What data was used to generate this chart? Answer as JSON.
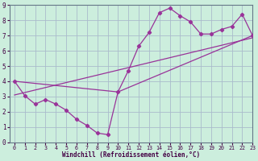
{
  "xlabel": "Windchill (Refroidissement éolien,°C)",
  "bg_color": "#cceedd",
  "grid_color": "#aabbcc",
  "line_color": "#993399",
  "curve_x": [
    0,
    1,
    2,
    3,
    4,
    5,
    6,
    7,
    8,
    9,
    10,
    11,
    12,
    13,
    14,
    15,
    16,
    17,
    18,
    19,
    20,
    21,
    22,
    23
  ],
  "curve_y": [
    4.0,
    3.05,
    2.5,
    2.8,
    2.5,
    2.1,
    1.5,
    1.1,
    0.6,
    0.5,
    3.3,
    4.7,
    6.3,
    7.2,
    8.5,
    8.8,
    8.3,
    7.9,
    7.1,
    7.1,
    7.4,
    7.6,
    8.4,
    7.0
  ],
  "trend1_x": [
    0,
    23
  ],
  "trend1_y": [
    3.1,
    6.85
  ],
  "trend2_x": [
    0,
    10,
    23
  ],
  "trend2_y": [
    4.0,
    3.3,
    7.0
  ],
  "xlim": [
    -0.5,
    23
  ],
  "ylim": [
    0,
    9
  ],
  "xticks": [
    0,
    1,
    2,
    3,
    4,
    5,
    6,
    7,
    8,
    9,
    10,
    11,
    12,
    13,
    14,
    15,
    16,
    17,
    18,
    19,
    20,
    21,
    22,
    23
  ],
  "yticks": [
    0,
    1,
    2,
    3,
    4,
    5,
    6,
    7,
    8,
    9
  ]
}
